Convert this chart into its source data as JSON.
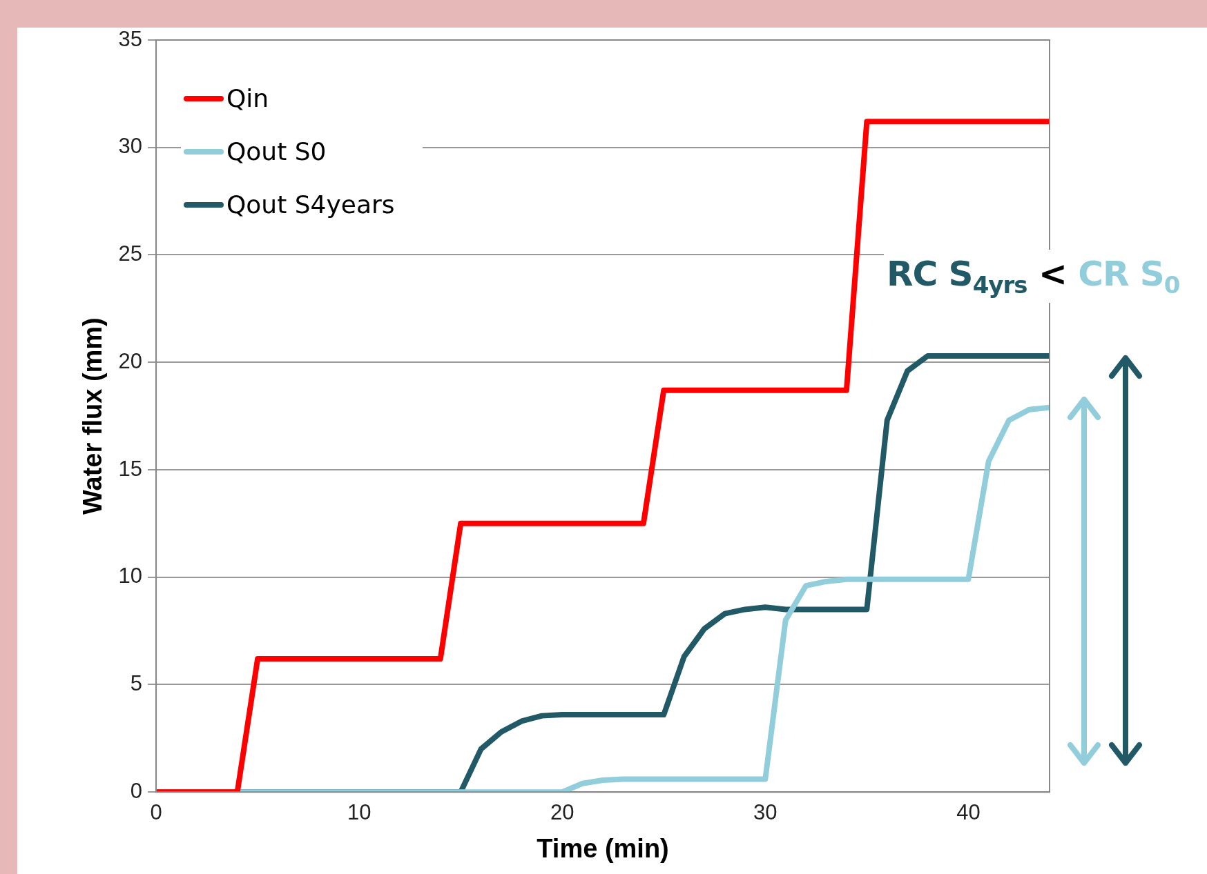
{
  "chart_data": {
    "type": "line",
    "xlabel": "Time (min)",
    "ylabel": "Water flux (mm)",
    "xlim": [
      0,
      44
    ],
    "xticks": [
      0,
      10,
      20,
      30,
      40
    ],
    "ylim": [
      0,
      35
    ],
    "yticks": [
      0,
      5,
      10,
      15,
      20,
      25,
      30,
      35
    ],
    "grid": "y",
    "legend": "top left",
    "marker": "none",
    "line_style": "solid",
    "annotations": [
      "RC S$_{4yrs}$",
      "<",
      "CR S$_{0}$"
    ],
    "series": [
      {
        "name": "Qin",
        "color": "#ff0000",
        "x": [
          0,
          4,
          5,
          14,
          15,
          24,
          25,
          34,
          35,
          44
        ],
        "values": [
          0,
          0,
          6.2,
          6.2,
          12.5,
          12.5,
          18.7,
          18.7,
          31.2,
          31.2
        ]
      },
      {
        "name": "Qout S0",
        "color": "#92cddc",
        "x": [
          0,
          20,
          21,
          22,
          23,
          30,
          31,
          32,
          33,
          34,
          40,
          41,
          42,
          43,
          44
        ],
        "values": [
          0,
          0,
          0.4,
          0.55,
          0.6,
          0.6,
          8.0,
          9.6,
          9.8,
          9.9,
          9.9,
          15.4,
          17.3,
          17.8,
          17.9
        ]
      },
      {
        "name": "Qout S4years",
        "color": "#215967",
        "x": [
          0,
          15,
          16,
          17,
          18,
          19,
          20,
          25,
          26,
          27,
          28,
          29,
          30,
          31,
          35,
          36,
          37,
          38,
          44
        ],
        "values": [
          0,
          0,
          2.0,
          2.8,
          3.3,
          3.55,
          3.6,
          3.6,
          6.3,
          7.6,
          8.3,
          8.5,
          8.6,
          8.5,
          8.5,
          17.3,
          19.6,
          20.3,
          20.3
        ]
      }
    ]
  }
}
